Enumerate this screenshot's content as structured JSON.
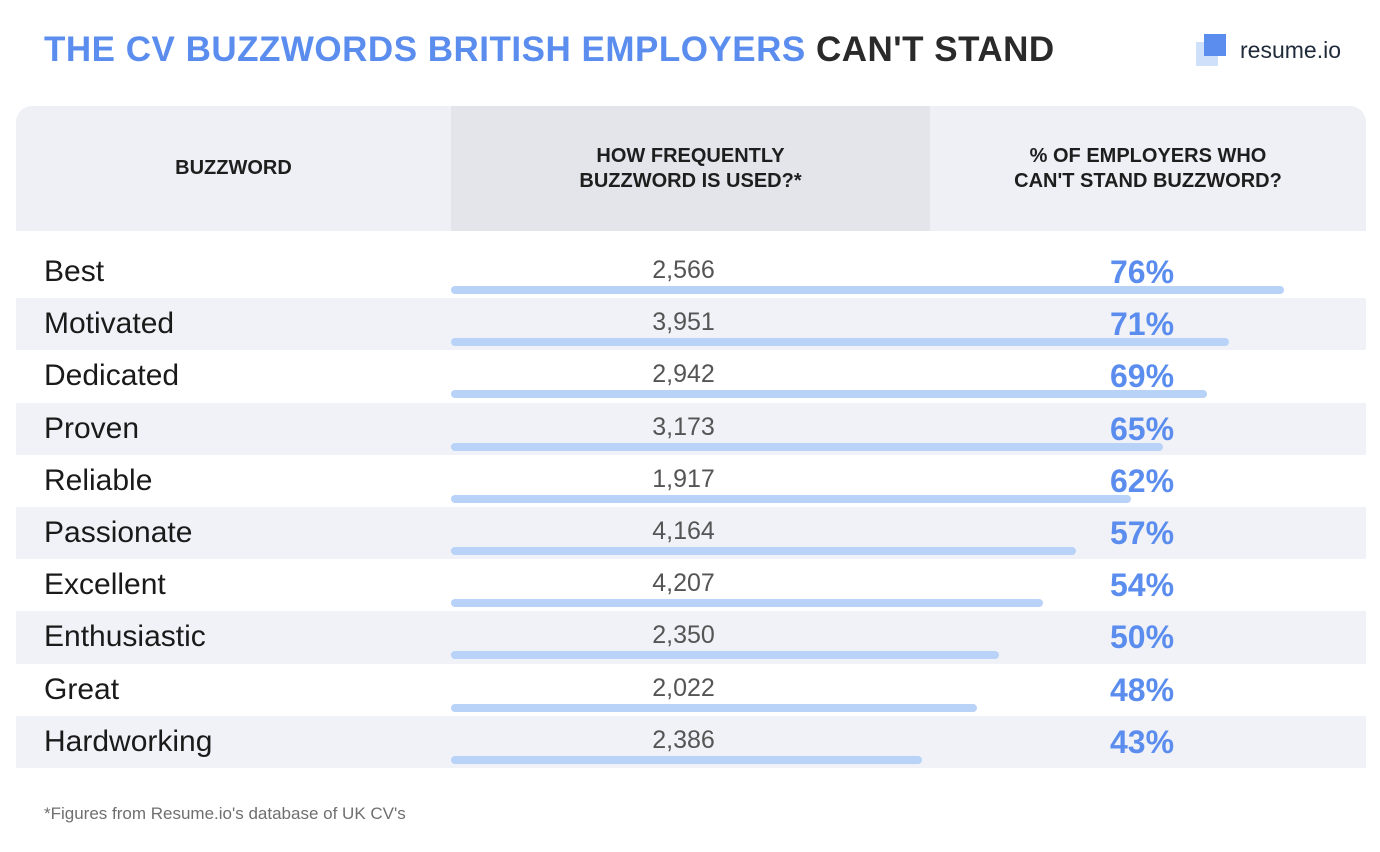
{
  "header": {
    "title_accent": "THE CV BUZZWORDS BRITISH EMPLOYERS",
    "title_dark": "CAN'T STAND",
    "brand": "resume.io"
  },
  "colors": {
    "accent": "#5b8def",
    "bar": "#b8d2f8",
    "header_bg": "#eff0f5",
    "row_alt": "#f1f2f7"
  },
  "chart_data": {
    "type": "table",
    "columns": [
      "BUZZWORD",
      "HOW FREQUENTLY BUZZWORD IS USED?*",
      "% OF EMPLOYERS WHO CAN'T STAND BUZZWORD?"
    ],
    "column_lines": [
      [
        "BUZZWORD"
      ],
      [
        "HOW FREQUENTLY",
        "BUZZWORD IS USED?*"
      ],
      [
        "% OF EMPLOYERS WHO",
        "CAN'T STAND BUZZWORD?"
      ]
    ],
    "rows": [
      {
        "buzzword": "Best",
        "frequency": "2,566",
        "percent": 76,
        "percent_label": "76%"
      },
      {
        "buzzword": "Motivated",
        "frequency": "3,951",
        "percent": 71,
        "percent_label": "71%"
      },
      {
        "buzzword": "Dedicated",
        "frequency": "2,942",
        "percent": 69,
        "percent_label": "69%"
      },
      {
        "buzzword": "Proven",
        "frequency": "3,173",
        "percent": 65,
        "percent_label": "65%"
      },
      {
        "buzzword": "Reliable",
        "frequency": "1,917",
        "percent": 62,
        "percent_label": "62%"
      },
      {
        "buzzword": "Passionate",
        "frequency": "4,164",
        "percent": 57,
        "percent_label": "57%"
      },
      {
        "buzzword": "Excellent",
        "frequency": "4,207",
        "percent": 54,
        "percent_label": "54%"
      },
      {
        "buzzword": "Enthusiastic",
        "frequency": "2,350",
        "percent": 50,
        "percent_label": "50%"
      },
      {
        "buzzword": "Great",
        "frequency": "2,022",
        "percent": 48,
        "percent_label": "48%"
      },
      {
        "buzzword": "Hardworking",
        "frequency": "2,386",
        "percent": 43,
        "percent_label": "43%"
      }
    ]
  },
  "footnote": "*Figures from Resume.io's database of UK CV's"
}
